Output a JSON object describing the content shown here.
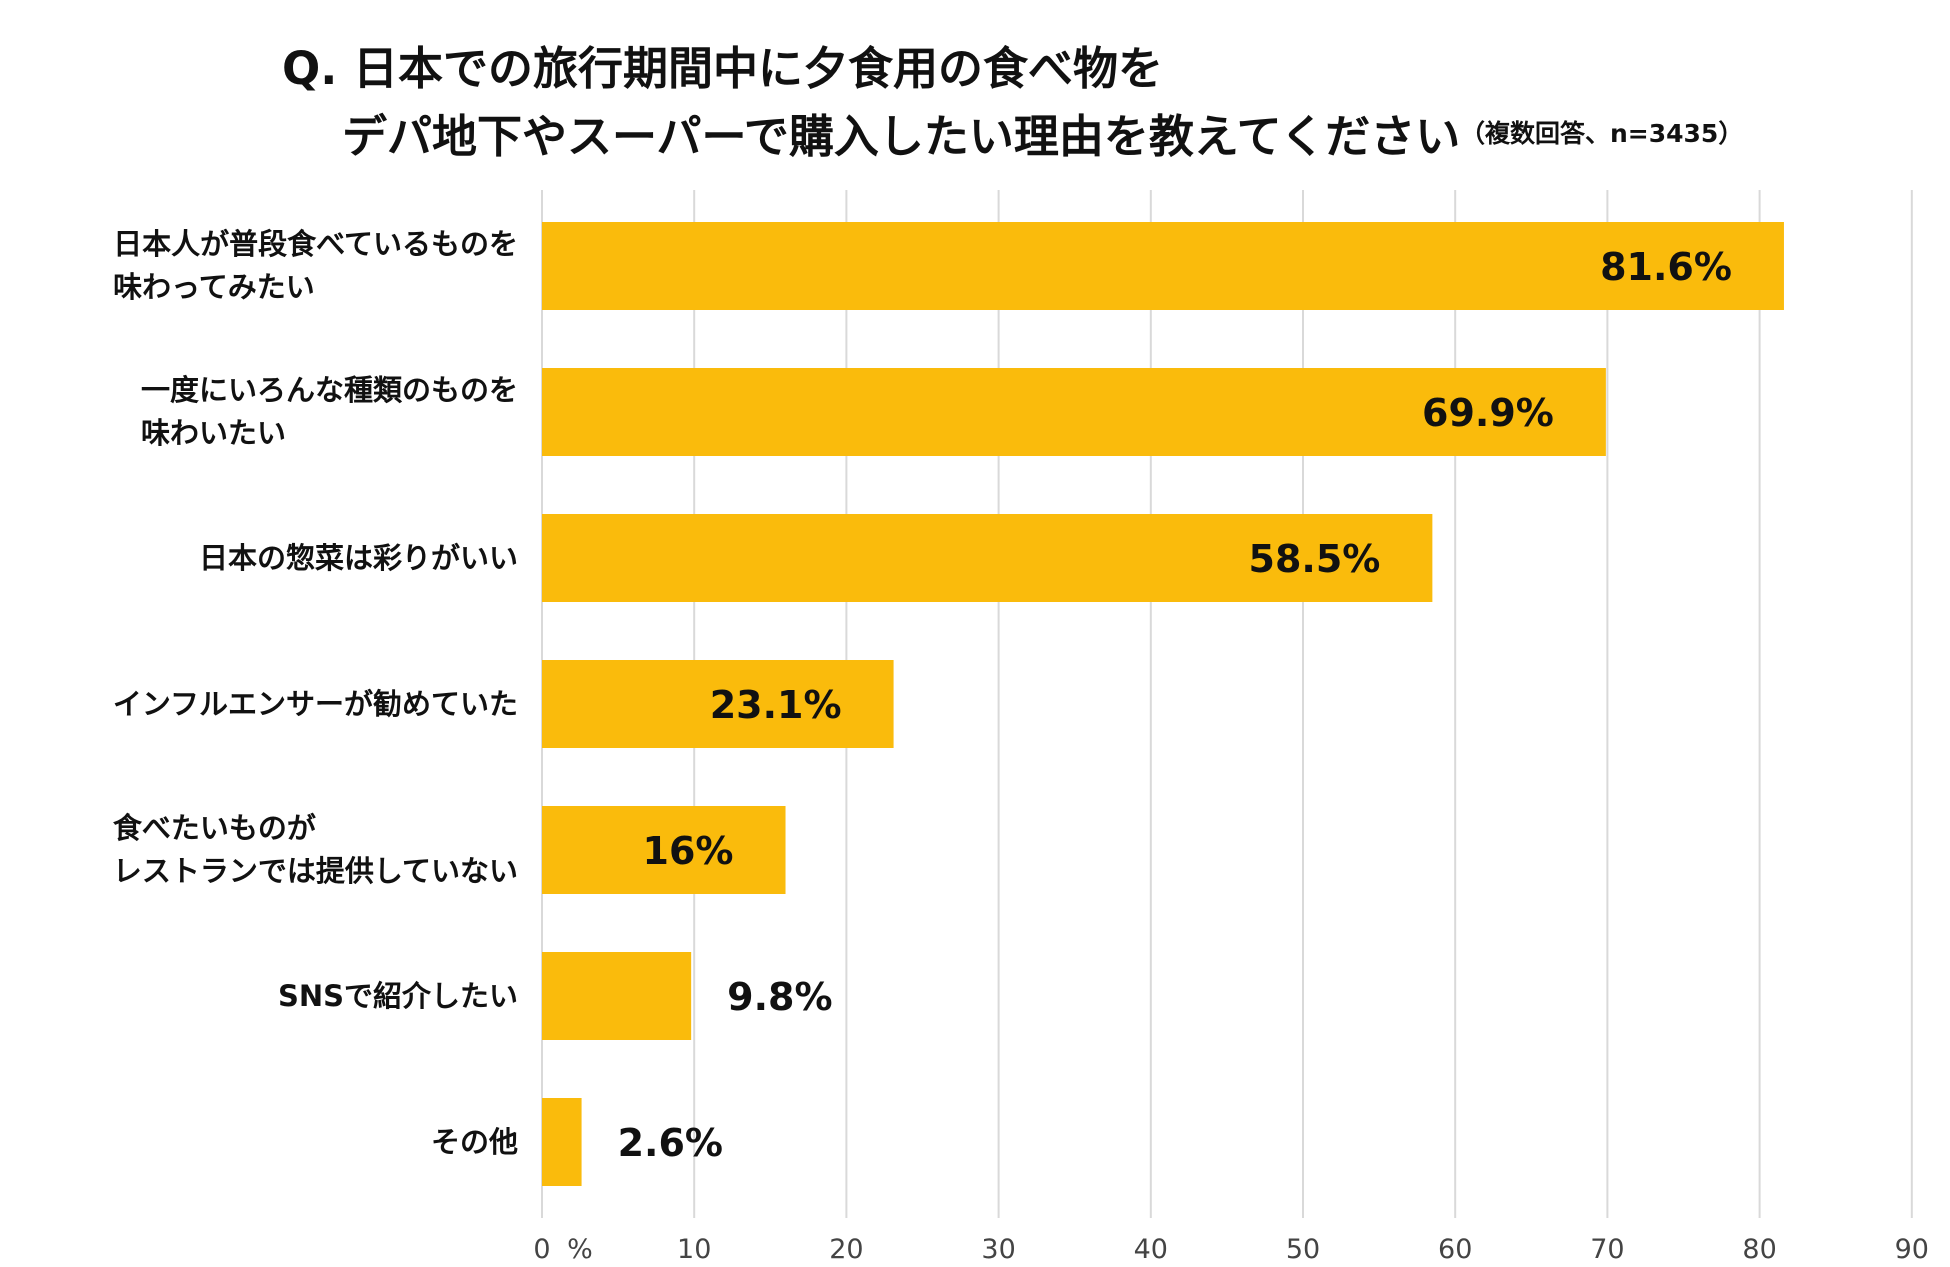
{
  "chart_data": {
    "type": "bar",
    "orientation": "horizontal",
    "title_line1": "Q. 日本での旅行期間中に夕食用の食べ物を",
    "title_line2": "デパ地下やスーパーで購入したい理由を教えてください",
    "note": "（複数回答、n=3435）",
    "categories": [
      "日本人が普段食べているものを\n味わってみたい",
      "一度にいろんな種類のものを\n味わいたい",
      "日本の惣菜は彩りがいい",
      "インフルエンサーが勧めていた",
      "食べたいものが\nレストランでは提供していない",
      "SNSで紹介したい",
      "その他"
    ],
    "values": [
      81.6,
      69.9,
      58.5,
      23.1,
      16,
      9.8,
      2.6
    ],
    "data_labels": [
      "81.6%",
      "69.9%",
      "58.5%",
      "23.1%",
      "16%",
      "9.8%",
      "2.6%"
    ],
    "xlim": [
      0,
      90
    ],
    "x_ticks": [
      "0",
      "10",
      "20",
      "30",
      "40",
      "50",
      "60",
      "70",
      "80",
      "90"
    ],
    "x_unit_label": "%",
    "grid": true,
    "bar_color": "#FABB0C",
    "grid_color": "#D9D9D9"
  }
}
